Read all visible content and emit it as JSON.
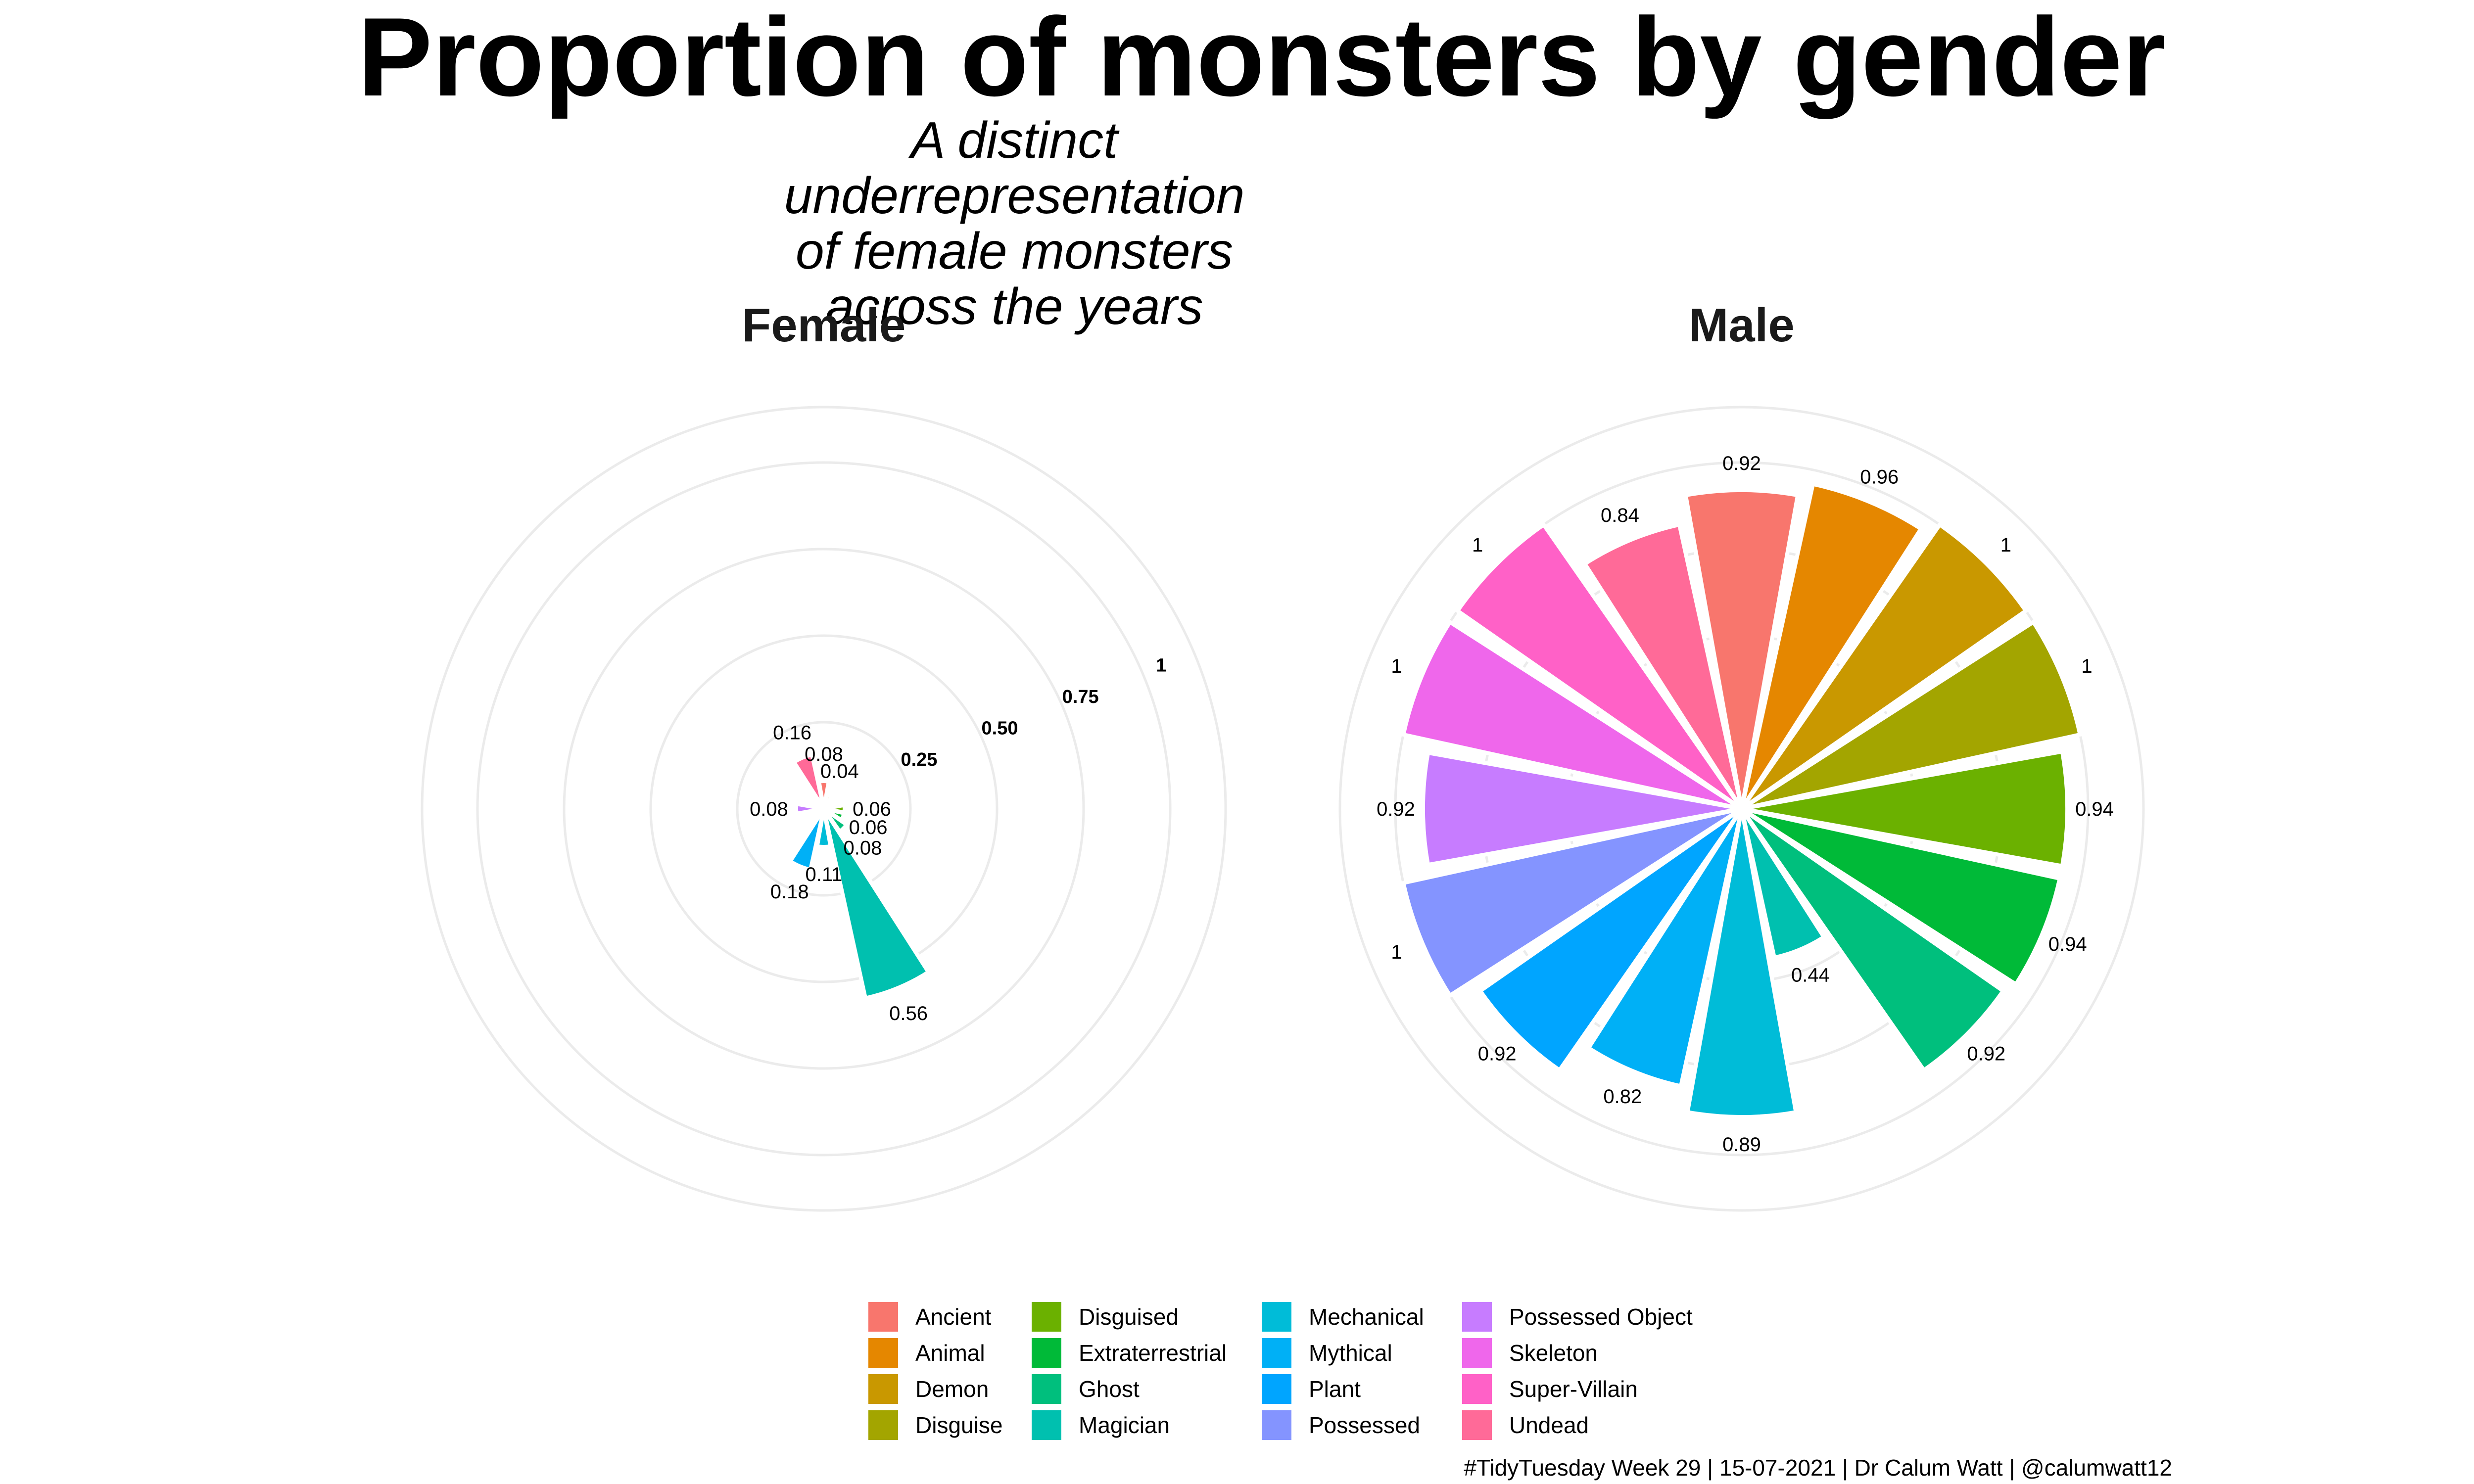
{
  "title": "Proportion of monsters by gender",
  "subtitle": "A distinct underrepresentation of female monsters across the years",
  "caption": "#TidyTuesday Week 29 | 15-07-2021 | Dr Calum Watt | @calumwatt12",
  "chart_data": {
    "type": "bar",
    "coord": "polar",
    "ylim": [
      0,
      1
    ],
    "radial_ticks": [
      "0.25",
      "0.50",
      "0.75",
      "1"
    ],
    "grid": true,
    "legend_position": "bottom",
    "categories": [
      "Ancient",
      "Animal",
      "Demon",
      "Disguise",
      "Disguised",
      "Extraterrestrial",
      "Ghost",
      "Magician",
      "Mechanical",
      "Mythical",
      "Plant",
      "Possessed",
      "Possessed Object",
      "Skeleton",
      "Super-Villain",
      "Undead"
    ],
    "colors": [
      "#F8766D",
      "#E58700",
      "#C99800",
      "#A3A500",
      "#6BB100",
      "#00BA38",
      "#00BF7D",
      "#00C0AF",
      "#00BCD8",
      "#00B0F6",
      "#00A5FF",
      "#8494FF",
      "#C77CFF",
      "#EF67EB",
      "#FF61C7",
      "#FF6A98"
    ],
    "panels": [
      {
        "name": "Female",
        "values": [
          0.08,
          0.04,
          null,
          null,
          0.06,
          0.06,
          0.08,
          0.56,
          0.11,
          0.18,
          null,
          null,
          0.08,
          null,
          null,
          0.16
        ],
        "labels": [
          "0.08",
          "0.04",
          "",
          "",
          "0.06",
          "0.06",
          "0.08",
          "0.56",
          "0.11",
          "0.18",
          "",
          "",
          "0.08",
          "",
          "",
          "0.16"
        ]
      },
      {
        "name": "Male",
        "values": [
          0.92,
          0.96,
          1,
          1,
          0.94,
          0.94,
          0.92,
          0.44,
          0.89,
          0.82,
          0.92,
          1,
          0.92,
          1,
          1,
          0.84
        ],
        "labels": [
          "0.92",
          "0.96",
          "1",
          "1",
          "0.94",
          "0.94",
          "0.92",
          "0.44",
          "0.89",
          "0.82",
          "0.92",
          "1",
          "0.92",
          "1",
          "1",
          "0.84"
        ]
      }
    ]
  }
}
